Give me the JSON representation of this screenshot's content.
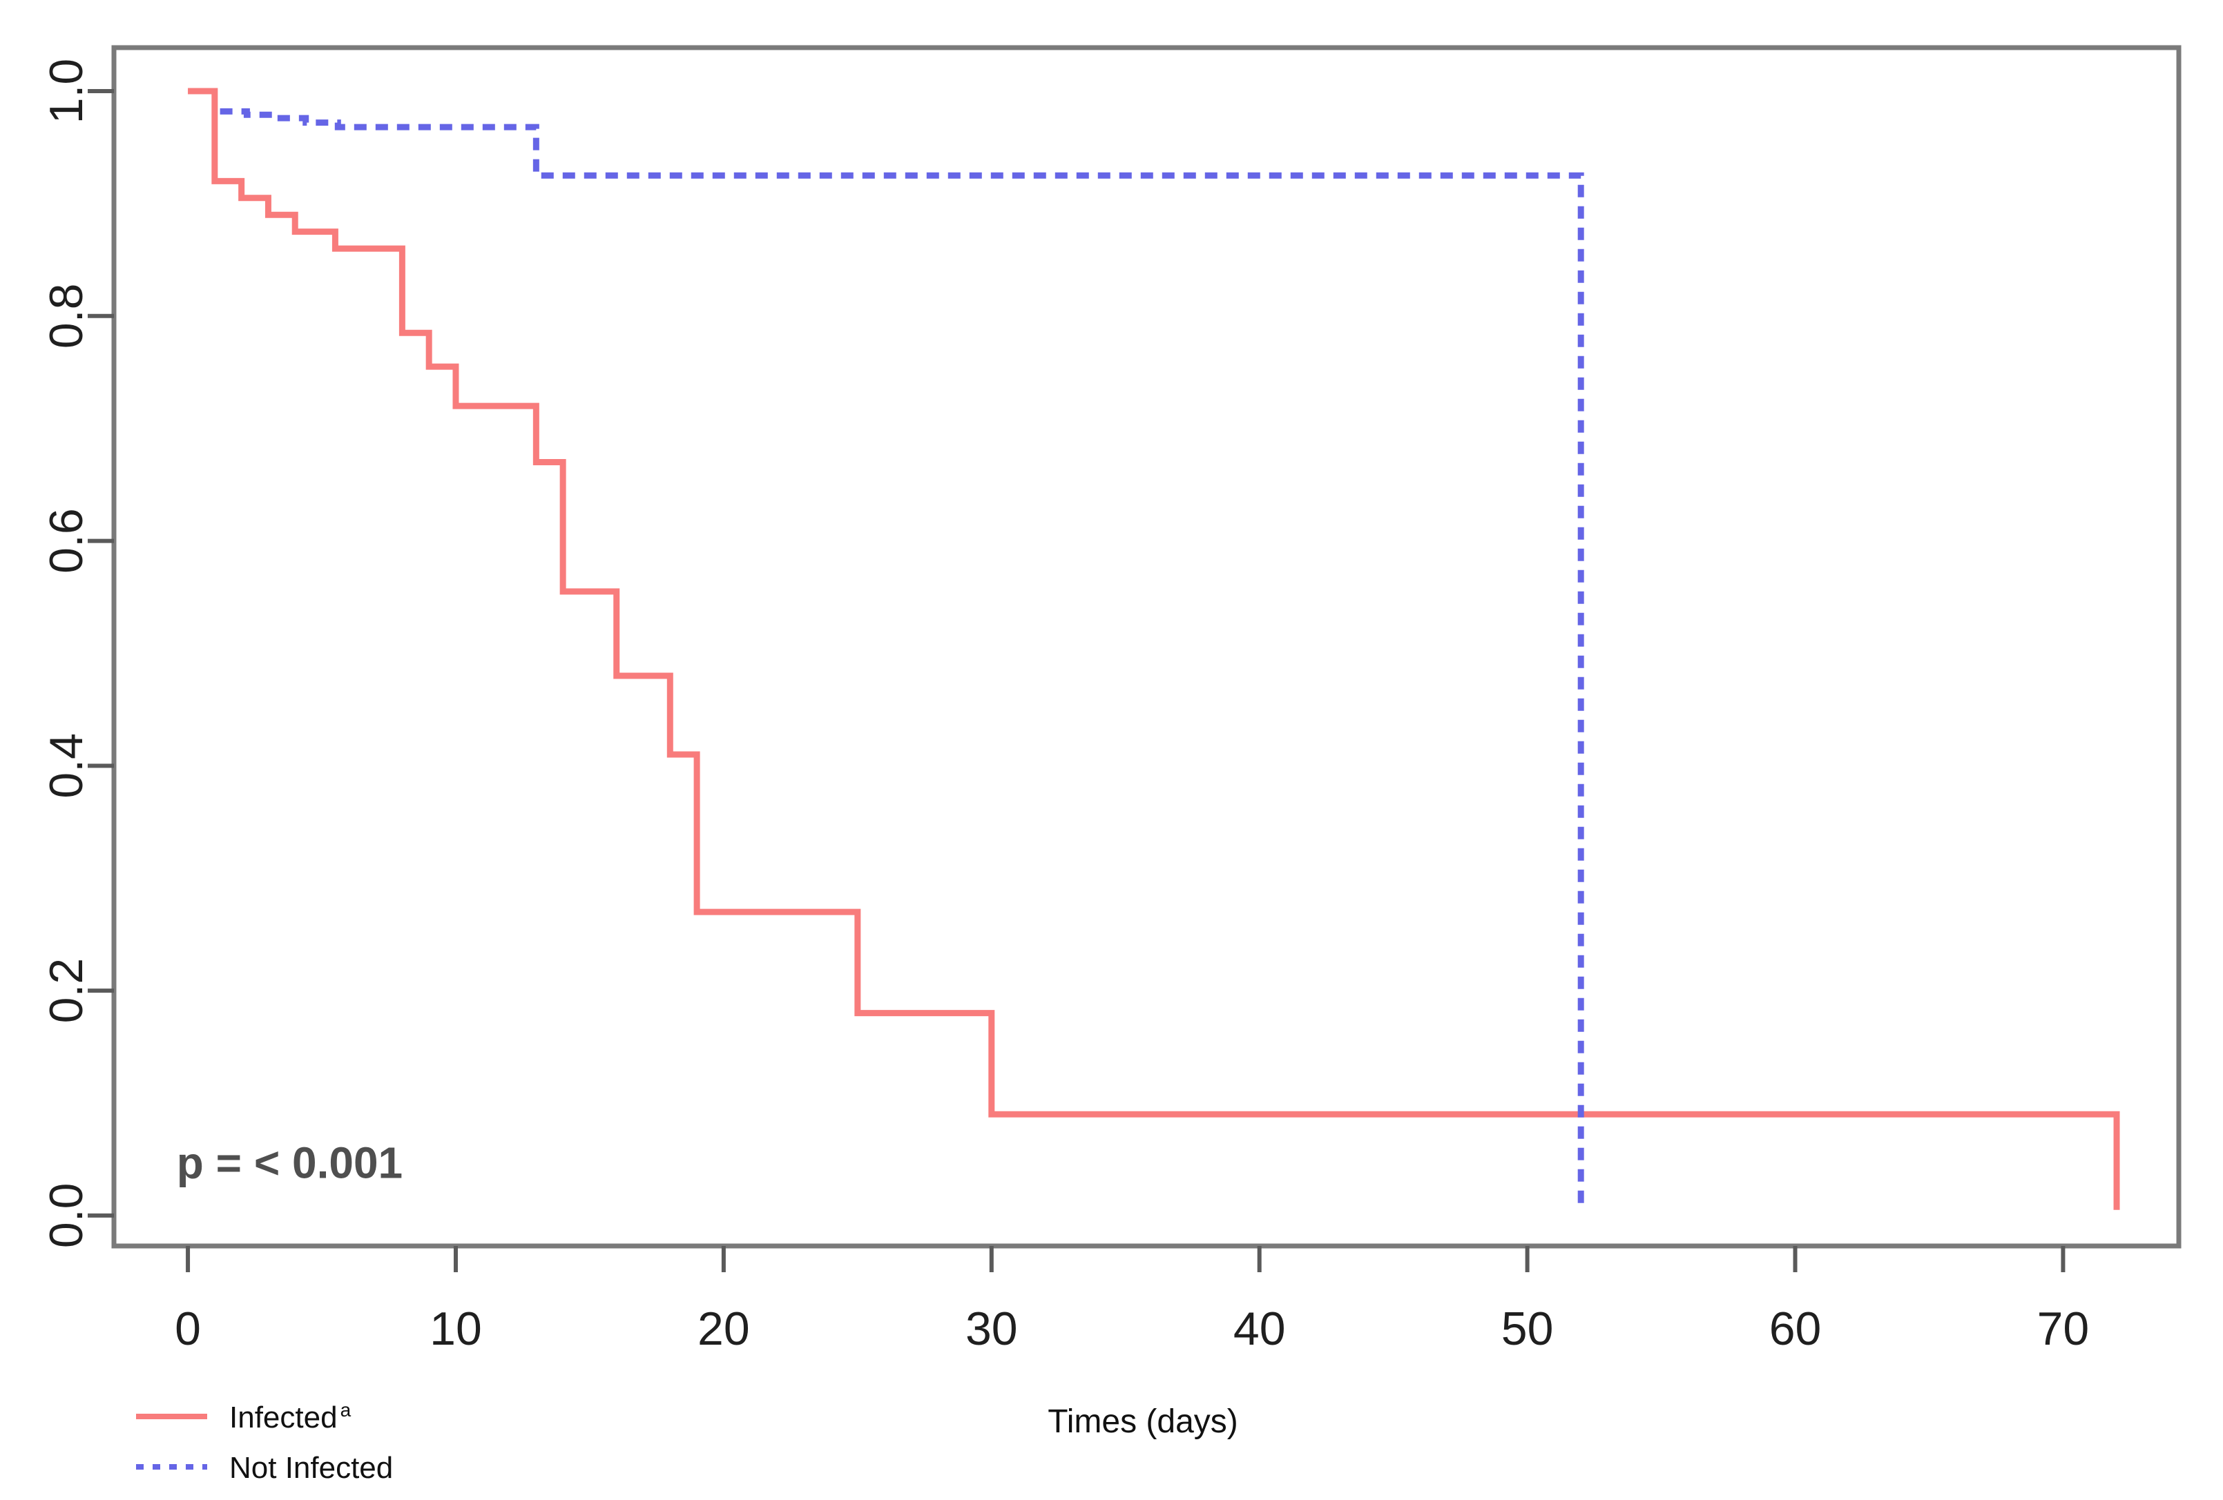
{
  "figure": {
    "background": "#ffffff"
  },
  "chart_data": {
    "type": "line",
    "subtype": "kaplan-meier-step-curves",
    "title": "",
    "xlabel": "Times (days)",
    "ylabel": "",
    "x_ticks": [
      0,
      10,
      20,
      30,
      40,
      50,
      60,
      70
    ],
    "x_tick_labels": [
      "0",
      "10",
      "20",
      "30",
      "40",
      "50",
      "60",
      "70"
    ],
    "y_ticks": [
      1.0,
      0.8,
      0.6,
      0.4,
      0.2,
      0.0
    ],
    "y_tick_labels": [
      "1.0",
      "0.8",
      "0.6",
      "0.4",
      "0.2",
      "0.0"
    ],
    "xlim": [
      -2.76,
      74.32
    ],
    "ylim": [
      -0.0271,
      1.0387
    ],
    "grid": false,
    "legend_position": "bottom-left-below-axis",
    "annotation": {
      "text": "p = < 0.001",
      "x": 3.8,
      "y": 0.047
    },
    "colors": {
      "infected": "#f87c7c",
      "not_infected": "#6565e6",
      "axis_box": "#7a7a7a",
      "tick_mark": "#5a5a5a",
      "tick_label": "#1f1f1f",
      "annotation_text": "#4f4f4f",
      "legend_text": "#111111",
      "xlabel_text": "#111111"
    },
    "series": [
      {
        "name": "Infected",
        "name_superscript": "a",
        "style": "solid",
        "color": "#f87c7c",
        "step_points": [
          [
            0,
            1.0
          ],
          [
            1,
            0.92
          ],
          [
            2,
            0.905
          ],
          [
            3,
            0.89
          ],
          [
            4,
            0.875
          ],
          [
            5.5,
            0.86
          ],
          [
            8,
            0.785
          ],
          [
            9,
            0.755
          ],
          [
            10,
            0.72
          ],
          [
            13,
            0.67
          ],
          [
            14,
            0.555
          ],
          [
            16,
            0.48
          ],
          [
            18,
            0.41
          ],
          [
            19,
            0.27
          ],
          [
            25,
            0.18
          ],
          [
            30,
            0.09
          ],
          [
            72,
            0.005
          ]
        ]
      },
      {
        "name": "Not Infected",
        "name_superscript": "",
        "style": "dotted",
        "color": "#6565e6",
        "step_points": [
          [
            1.2,
            0.982
          ],
          [
            2.2,
            0.979
          ],
          [
            3.2,
            0.976
          ],
          [
            4.4,
            0.972
          ],
          [
            5.6,
            0.968
          ],
          [
            13,
            0.925
          ],
          [
            52,
            0.005
          ]
        ]
      }
    ]
  }
}
